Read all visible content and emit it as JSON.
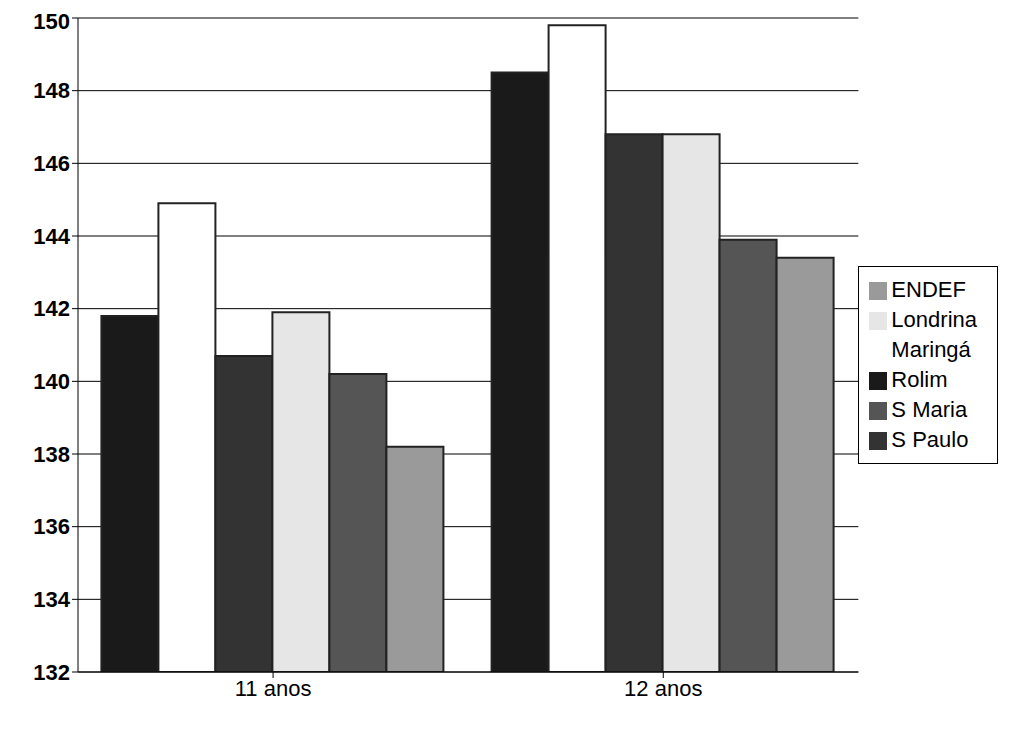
{
  "chart_data": {
    "type": "bar",
    "categories": [
      "11 anos",
      "12 anos"
    ],
    "series": [
      {
        "name": "Rolim",
        "color": "#1a1a1a",
        "values": [
          141.8,
          148.5
        ]
      },
      {
        "name": "Maringá",
        "color": "#ffffff",
        "values": [
          144.9,
          149.8
        ]
      },
      {
        "name": "S Paulo",
        "color": "#333333",
        "values": [
          140.7,
          146.8
        ]
      },
      {
        "name": "Londrina",
        "color": "#e6e6e6",
        "values": [
          141.9,
          146.8
        ]
      },
      {
        "name": "S Maria",
        "color": "#555555",
        "values": [
          140.2,
          143.9
        ]
      },
      {
        "name": "ENDEF",
        "color": "#9a9a9a",
        "values": [
          138.2,
          143.4
        ]
      }
    ],
    "ylim": [
      132,
      150
    ],
    "yticks": [
      132,
      134,
      136,
      138,
      140,
      142,
      144,
      146,
      148,
      150
    ],
    "grid": true,
    "legend": "right"
  }
}
